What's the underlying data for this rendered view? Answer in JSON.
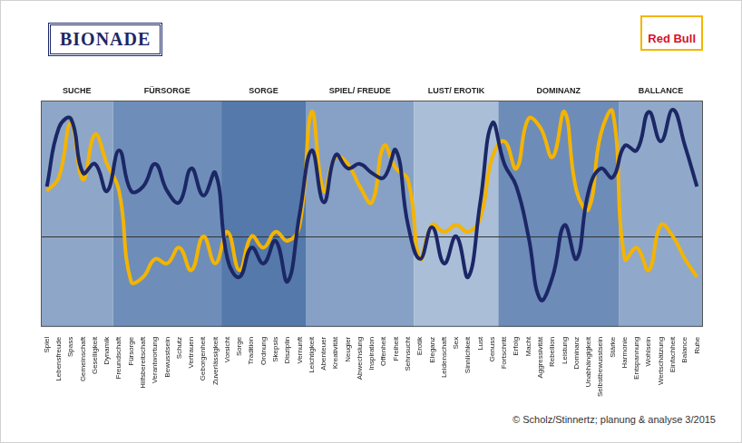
{
  "chart_data": {
    "type": "line",
    "categories": [
      "Spiel",
      "Lebensfreude",
      "Spass",
      "Gemeinschaft",
      "Geselligkeit",
      "Dynamik",
      "Freundschaft",
      "Fürsorge",
      "Hilfsbereitschaft",
      "Verantwortung",
      "Bewusstsein",
      "Schutz",
      "Vertrauen",
      "Geborgenheit",
      "Zuverlässigkeit",
      "Vorsicht",
      "Sorge",
      "Tradition",
      "Ordnung",
      "Skepsis",
      "Disziplin",
      "Vernunft",
      "Leichtigkeit",
      "Abenteuer",
      "Kreativität",
      "Neugier",
      "Abwechslung",
      "Inspiration",
      "Offenheit",
      "Freiheit",
      "Sehnsucht",
      "Erotik",
      "Eleganz",
      "Leidenschaft",
      "Sex",
      "Sinnlichkeit",
      "Lust",
      "Genuss",
      "Fortschritt",
      "Erfolg",
      "Macht",
      "Aggressivität",
      "Rebellion",
      "Leistung",
      "Dominanz",
      "Unabhängigkeit",
      "Selbstbewusstsein",
      "Stärke",
      "Harmonie",
      "Entspannung",
      "Wohlsein",
      "Wertschätzung",
      "Einfachheit",
      "Balance",
      "Ruhe"
    ],
    "groups": [
      {
        "label": "SUCHE",
        "count": 6
      },
      {
        "label": "FÜRSORGE",
        "count": 9
      },
      {
        "label": "SORGE",
        "count": 7
      },
      {
        "label": "SPIEL/ FREUDE",
        "count": 9
      },
      {
        "label": "LUST/ EROTIK",
        "count": 7
      },
      {
        "label": "DOMINANZ",
        "count": 10
      },
      {
        "label": "BALLANCE",
        "count": 7
      }
    ],
    "series": [
      {
        "name": "BIONADE",
        "color": "#1c2766",
        "values": [
          62,
          88,
          92,
          68,
          72,
          60,
          78,
          60,
          62,
          72,
          60,
          55,
          70,
          58,
          68,
          30,
          22,
          35,
          28,
          38,
          20,
          50,
          78,
          55,
          76,
          70,
          72,
          68,
          66,
          78,
          45,
          30,
          44,
          28,
          40,
          22,
          55,
          90,
          72,
          62,
          40,
          12,
          22,
          45,
          30,
          60,
          70,
          66,
          80,
          78,
          95,
          82,
          96,
          80,
          62
        ]
      },
      {
        "name": "Red Bull",
        "color": "#f4b400",
        "values": [
          60,
          66,
          90,
          65,
          85,
          72,
          60,
          20,
          22,
          30,
          28,
          35,
          25,
          40,
          28,
          42,
          25,
          40,
          35,
          42,
          38,
          45,
          95,
          60,
          75,
          72,
          62,
          55,
          80,
          70,
          65,
          30,
          45,
          42,
          45,
          42,
          48,
          75,
          82,
          70,
          92,
          88,
          75,
          95,
          60,
          52,
          85,
          95,
          30,
          35,
          25,
          45,
          40,
          30,
          22
        ]
      }
    ],
    "ylim": [
      0,
      100
    ],
    "yticks": [
      40
    ],
    "grid": true,
    "tick_labels": "x",
    "source": "© Scholz/Stinnertz; planung & analyse 3/2015"
  }
}
